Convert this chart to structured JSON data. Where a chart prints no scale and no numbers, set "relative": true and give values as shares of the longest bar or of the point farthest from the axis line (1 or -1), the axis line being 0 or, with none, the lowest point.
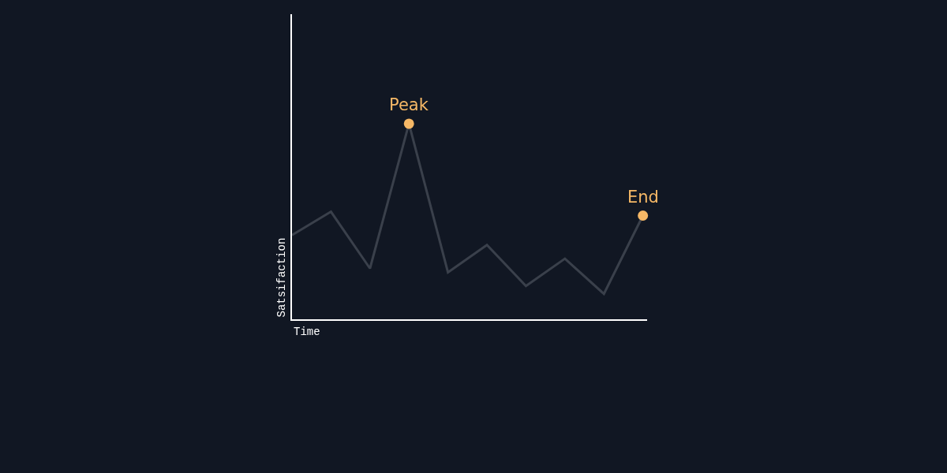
{
  "chart_data": {
    "type": "line",
    "relative": true,
    "xlabel": "Time",
    "ylabel": "Satsifaction",
    "line_style": "solid",
    "categories": [
      null,
      null,
      null,
      null,
      null,
      null,
      null,
      null,
      null,
      null
    ],
    "series": [
      {
        "color": "#3a404b",
        "colors": [
          null,
          null,
          null,
          "#f6b866",
          null,
          null,
          null,
          null,
          null,
          "#f6b866"
        ],
        "values": [
          0.43,
          0.55,
          0.26,
          1,
          0.24,
          0.38,
          0.17,
          0.31,
          0.13,
          0.53
        ]
      }
    ],
    "annotations": [
      "Peak",
      "End"
    ]
  }
}
